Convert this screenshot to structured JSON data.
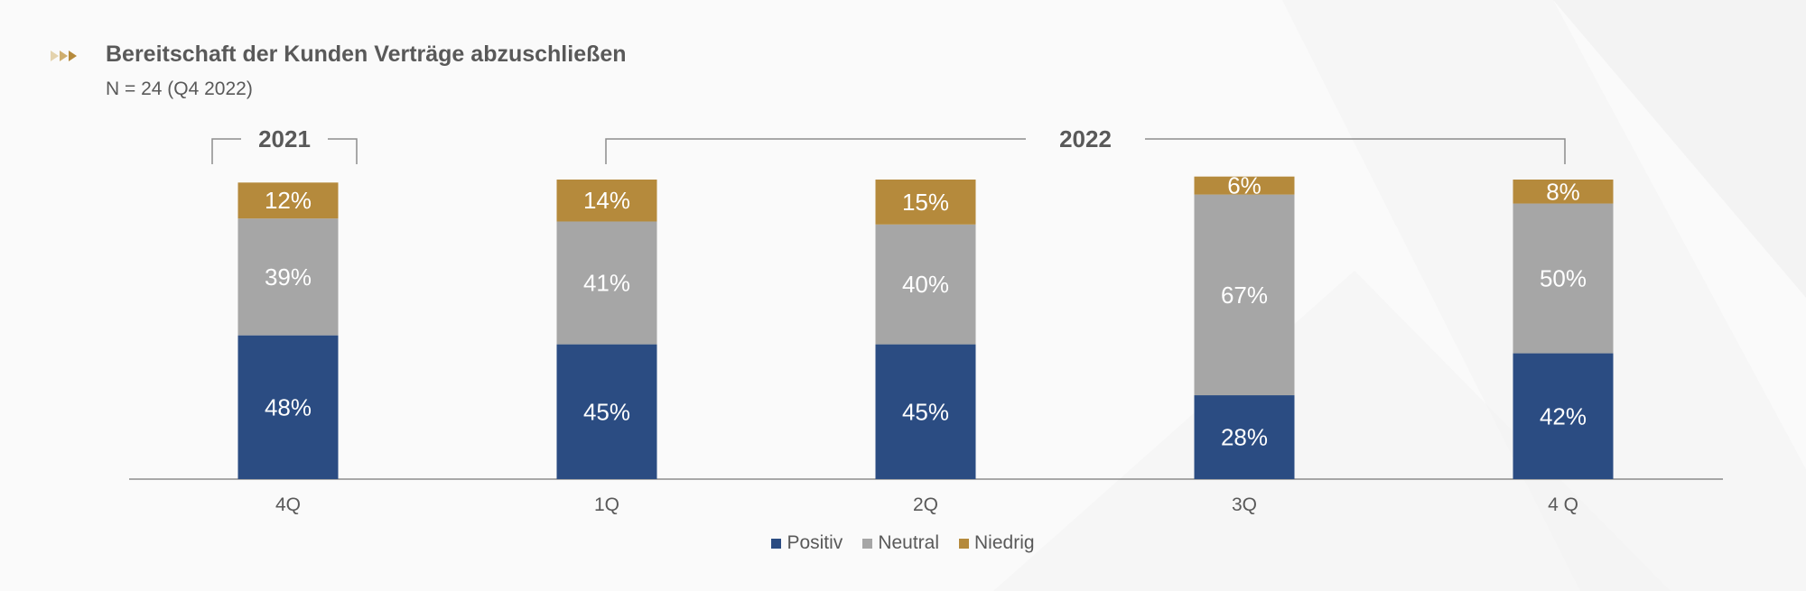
{
  "header": {
    "title": "Bereitschaft der Kunden Verträge abzuschließen",
    "subtitle": "N = 24 (Q4 2022)"
  },
  "colors": {
    "positiv": "#2b4c82",
    "neutral": "#a6a6a6",
    "niedrig": "#b58a3c",
    "axis": "#8c8c8c",
    "label_text": "#ffffff",
    "tick_text": "#595959"
  },
  "year_groups": [
    {
      "label": "2021",
      "from": 0,
      "to": 0
    },
    {
      "label": "2022",
      "from": 1,
      "to": 4
    }
  ],
  "chart_data": {
    "type": "bar",
    "stacked": true,
    "categories": [
      "4Q",
      "1Q",
      "2Q",
      "3Q",
      "4 Q"
    ],
    "series": [
      {
        "name": "Positiv",
        "values": [
          48,
          45,
          45,
          28,
          42
        ],
        "color": "#2b4c82"
      },
      {
        "name": "Neutral",
        "values": [
          39,
          41,
          40,
          67,
          50
        ],
        "color": "#a6a6a6"
      },
      {
        "name": "Niedrig",
        "values": [
          12,
          14,
          15,
          6,
          8
        ],
        "color": "#b58a3c"
      }
    ],
    "data_labels": [
      [
        "48%",
        "45%",
        "45%",
        "28%",
        "42%"
      ],
      [
        "39%",
        "41%",
        "40%",
        "67%",
        "50%"
      ],
      [
        "12%",
        "14%",
        "15%",
        "6%",
        "8%"
      ]
    ],
    "title": "Bereitschaft der Kunden Verträge abzuschließen",
    "subtitle": "N = 24 (Q4 2022)",
    "ylim": [
      0,
      100
    ],
    "unit": "%",
    "legend_position": "bottom-center",
    "grid": false
  }
}
